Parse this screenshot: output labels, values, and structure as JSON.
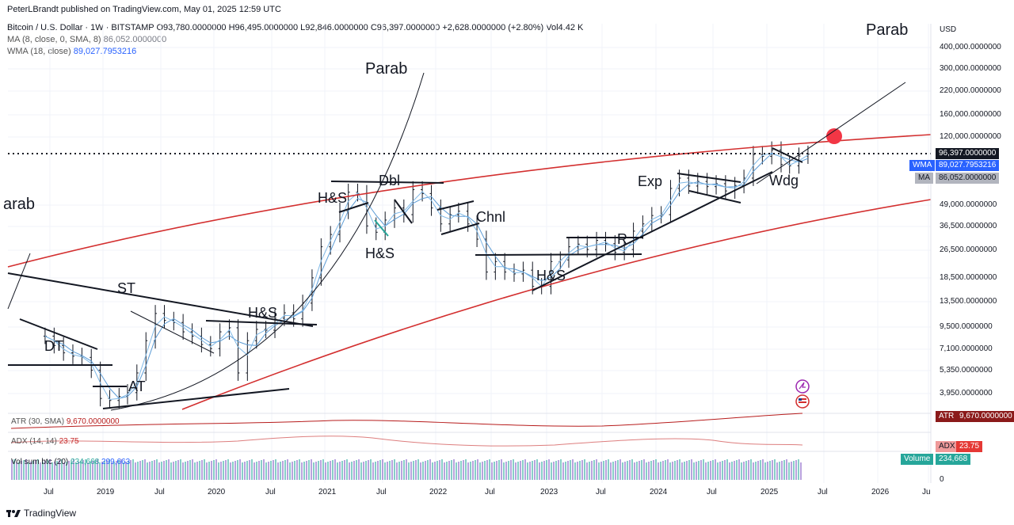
{
  "header": {
    "published": "PeterLBrandt published on TradingView.com, May 01, 2025 12:59 UTC",
    "symbol": "Bitcoin / U.S. Dollar · 1W · BITSTAMP",
    "ohlc": "O93,780.0000000  H96,495.0000000  L92,846.0000000  C96,397.0000000  +2,628.0000000 (+2.80%)  Vol4.42 K",
    "ma_label": "MA (8, close, 0, SMA, 8)",
    "ma_value": "86,052.0000000",
    "wma_label": "WMA (18, close)",
    "wma_value": "89,027.7953216"
  },
  "currency": "USD",
  "price_axis": [
    "400,000.0000000",
    "300,000.0000000",
    "220,000.0000000",
    "160,000.0000000",
    "120,000.0000000",
    "96,397.0000000",
    "89,027.7953216",
    "86,052.0000000",
    "49,000.0000000",
    "36,500.0000000",
    "26,500.0000000",
    "18,500.0000000",
    "13,500.0000000",
    "9,500.0000000",
    "7,100.0000000",
    "5,350.0000000",
    "3,950.0000000"
  ],
  "time_axis": [
    "Jul",
    "2019",
    "Jul",
    "2020",
    "Jul",
    "2021",
    "Jul",
    "2022",
    "Jul",
    "2023",
    "Jul",
    "2024",
    "Jul",
    "2025",
    "Jul",
    "2026",
    "Ju"
  ],
  "tags": {
    "last": "96,397.0000000",
    "wma_name": "WMA",
    "wma": "89,027.7953216",
    "ma_name": "MA",
    "ma": "86,052.0000000",
    "atr_name": "ATR",
    "atr": "9,670.0000000",
    "adx_name": "ADX",
    "adx": "23.75",
    "vol_name": "Volume",
    "vol": "234,668",
    "zero": "0"
  },
  "indicators": {
    "atr": "ATR (30, SMA)",
    "atr_val": "9,670.0000000",
    "adx": "ADX (14, 14)",
    "adx_val": "23.75",
    "vol": "Vol sum btc (20)",
    "vol_val1": "234,668",
    "vol_val2": "299,663"
  },
  "annotations": [
    "Parab",
    "Parab",
    "arab",
    "Dbl",
    "H&S",
    "H&S",
    "Chnl",
    "Exp",
    "Wdg",
    "R",
    "H&S",
    "ST",
    "H&S",
    "DT",
    "AT"
  ],
  "branding": "TradingView",
  "chart_data": {
    "type": "candlestick",
    "scale": "log",
    "x_range": [
      "2018-06",
      "2026-08"
    ],
    "y_range": [
      3150,
      400000
    ],
    "series": [
      {
        "name": "BTC/USD weekly close",
        "points": [
          [
            "2018-06",
            8500
          ],
          [
            "2018-07",
            7500
          ],
          [
            "2018-08",
            6800
          ],
          [
            "2018-09",
            6500
          ],
          [
            "2018-10",
            6400
          ],
          [
            "2018-11",
            5400
          ],
          [
            "2018-12",
            3700
          ],
          [
            "2019-01",
            3600
          ],
          [
            "2019-02",
            3800
          ],
          [
            "2019-03",
            4000
          ],
          [
            "2019-04",
            5200
          ],
          [
            "2019-05",
            8000
          ],
          [
            "2019-06",
            11500
          ],
          [
            "2019-07",
            10500
          ],
          [
            "2019-08",
            10200
          ],
          [
            "2019-09",
            9000
          ],
          [
            "2019-10",
            8500
          ],
          [
            "2019-11",
            7600
          ],
          [
            "2019-12",
            7200
          ],
          [
            "2020-01",
            9000
          ],
          [
            "2020-02",
            9500
          ],
          [
            "2020-03",
            5200
          ],
          [
            "2020-04",
            8000
          ],
          [
            "2020-05",
            9300
          ],
          [
            "2020-06",
            9200
          ],
          [
            "2020-07",
            10800
          ],
          [
            "2020-08",
            11600
          ],
          [
            "2020-09",
            10700
          ],
          [
            "2020-10",
            13200
          ],
          [
            "2020-11",
            18500
          ],
          [
            "2020-12",
            28000
          ],
          [
            "2021-01",
            33000
          ],
          [
            "2021-02",
            45000
          ],
          [
            "2021-03",
            58000
          ],
          [
            "2021-04",
            57000
          ],
          [
            "2021-05",
            37000
          ],
          [
            "2021-06",
            34000
          ],
          [
            "2021-07",
            40000
          ],
          [
            "2021-08",
            47000
          ],
          [
            "2021-09",
            43000
          ],
          [
            "2021-10",
            60000
          ],
          [
            "2021-11",
            57000
          ],
          [
            "2021-12",
            47000
          ],
          [
            "2022-01",
            38000
          ],
          [
            "2022-02",
            43000
          ],
          [
            "2022-03",
            45000
          ],
          [
            "2022-04",
            38000
          ],
          [
            "2022-05",
            31000
          ],
          [
            "2022-06",
            20000
          ],
          [
            "2022-07",
            23000
          ],
          [
            "2022-08",
            20000
          ],
          [
            "2022-09",
            19500
          ],
          [
            "2022-10",
            20500
          ],
          [
            "2022-11",
            16500
          ],
          [
            "2022-12",
            16500
          ],
          [
            "2023-01",
            23000
          ],
          [
            "2023-02",
            23500
          ],
          [
            "2023-03",
            28000
          ],
          [
            "2023-04",
            29000
          ],
          [
            "2023-05",
            27000
          ],
          [
            "2023-06",
            30500
          ],
          [
            "2023-07",
            29200
          ],
          [
            "2023-08",
            26000
          ],
          [
            "2023-09",
            27000
          ],
          [
            "2023-10",
            34500
          ],
          [
            "2023-11",
            38000
          ],
          [
            "2023-12",
            42500
          ],
          [
            "2024-01",
            43000
          ],
          [
            "2024-02",
            61000
          ],
          [
            "2024-03",
            70000
          ],
          [
            "2024-04",
            63000
          ],
          [
            "2024-05",
            67000
          ],
          [
            "2024-06",
            62500
          ],
          [
            "2024-07",
            65000
          ],
          [
            "2024-08",
            59000
          ],
          [
            "2024-09",
            63500
          ],
          [
            "2024-10",
            70000
          ],
          [
            "2024-11",
            96000
          ],
          [
            "2024-12",
            93500
          ],
          [
            "2025-01",
            102000
          ],
          [
            "2025-02",
            84000
          ],
          [
            "2025-03",
            82500
          ],
          [
            "2025-04",
            94000
          ],
          [
            "2025-05",
            96397
          ]
        ]
      }
    ],
    "levels": {
      "last": 96397,
      "wma": 89027.7953216,
      "ma": 86052
    }
  }
}
